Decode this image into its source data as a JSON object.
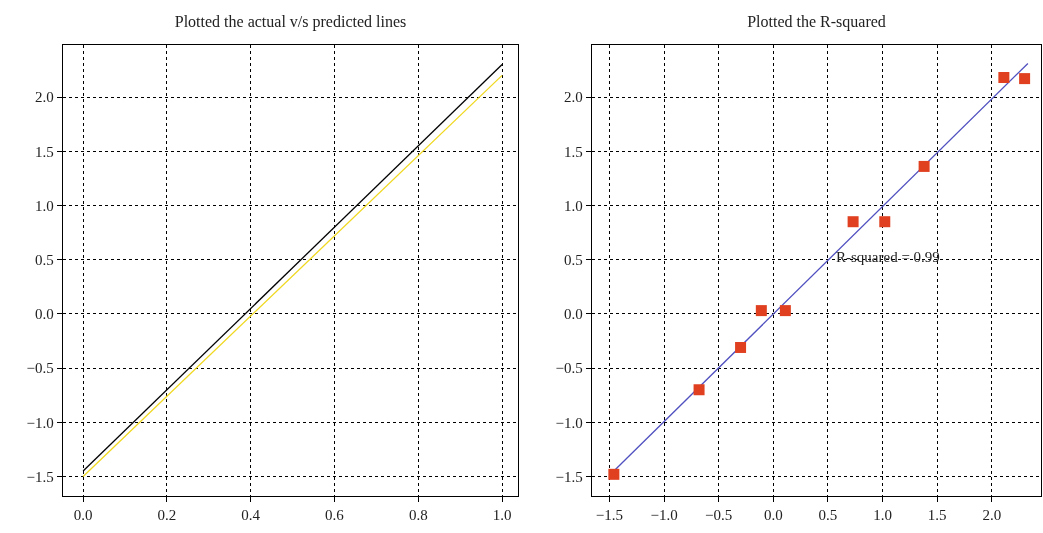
{
  "chart_data": [
    {
      "type": "line",
      "title": "Plotted the actual v/s predicted lines",
      "xlim": [
        -0.048,
        1.038
      ],
      "ylim": [
        -1.68,
        2.48
      ],
      "xticks": [
        {
          "value": 0,
          "label": "0.0"
        },
        {
          "value": 0.2,
          "label": "0.2"
        },
        {
          "value": 0.4,
          "label": "0.4"
        },
        {
          "value": 0.6,
          "label": "0.6"
        },
        {
          "value": 0.8,
          "label": "0.8"
        },
        {
          "value": 1,
          "label": "1.0"
        }
      ],
      "yticks": [
        {
          "value": -1.5,
          "label": "−1.5"
        },
        {
          "value": -1,
          "label": "−1.0"
        },
        {
          "value": -0.5,
          "label": "−0.5"
        },
        {
          "value": 0,
          "label": "0.0"
        },
        {
          "value": 0.5,
          "label": "0.5"
        },
        {
          "value": 1,
          "label": "1.0"
        },
        {
          "value": 1.5,
          "label": "1.5"
        },
        {
          "value": 2,
          "label": "2.0"
        }
      ],
      "grid": true,
      "legend": false,
      "x": [
        0,
        1
      ],
      "series": [
        {
          "color": "#000000",
          "values": [
            -1.45,
            2.3
          ]
        },
        {
          "color": "#f0d820",
          "values": [
            -1.5,
            2.2
          ]
        }
      ]
    },
    {
      "type": "scatter",
      "title": "Plotted the R-squared",
      "xlim": [
        -1.66,
        2.45
      ],
      "ylim": [
        -1.68,
        2.48
      ],
      "xticks": [
        {
          "value": -1.5,
          "label": "−1.5"
        },
        {
          "value": -1,
          "label": "−1.0"
        },
        {
          "value": -0.5,
          "label": "−0.5"
        },
        {
          "value": 0,
          "label": "0.0"
        },
        {
          "value": 0.5,
          "label": "0.5"
        },
        {
          "value": 1,
          "label": "1.0"
        },
        {
          "value": 1.5,
          "label": "1.5"
        },
        {
          "value": 2,
          "label": "2.0"
        }
      ],
      "yticks": [
        {
          "value": -1.5,
          "label": "−1.5"
        },
        {
          "value": -1,
          "label": "−1.0"
        },
        {
          "value": -0.5,
          "label": "−0.5"
        },
        {
          "value": 0,
          "label": "0.0"
        },
        {
          "value": 0.5,
          "label": "0.5"
        },
        {
          "value": 1,
          "label": "1.0"
        },
        {
          "value": 1.5,
          "label": "1.5"
        },
        {
          "value": 2,
          "label": "2.0"
        }
      ],
      "grid": true,
      "legend": false,
      "annotations": [
        "R-squared = 0.99"
      ],
      "series": [
        {
          "type": "line",
          "color": "#5050c0",
          "x": [
            -1.46,
            2.33
          ],
          "values": [
            -1.45,
            2.31
          ]
        },
        {
          "color": "#e04020",
          "marker": "square",
          "x": [
            -1.46,
            -0.68,
            -0.3,
            -0.11,
            0.11,
            0.73,
            1.02,
            1.38,
            2.11,
            2.3
          ],
          "values": [
            -1.48,
            -0.7,
            -0.31,
            0.03,
            0.03,
            0.85,
            0.85,
            1.36,
            2.18,
            2.17
          ]
        }
      ]
    }
  ]
}
